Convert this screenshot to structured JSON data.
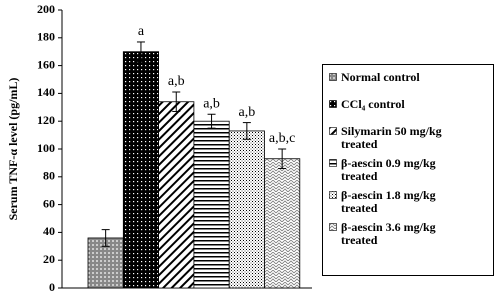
{
  "chart_data": {
    "type": "bar",
    "y_label": "Serum TNF-α level (pg/mL)",
    "categories": [
      "Normal control",
      "CCl₄ control",
      "Silymarin 50 mg/kg treated",
      "β-aescin 0.9 mg/kg treated",
      "β-aescin 1.8 mg/kg treated",
      "β-aescin 3.6 mg/kg treated"
    ],
    "values": [
      36,
      170,
      134,
      120,
      113,
      93
    ],
    "errors": [
      6,
      7,
      7,
      5,
      6,
      7
    ],
    "annotations": [
      null,
      "a",
      "a,b",
      "a,b",
      "a,b",
      "a,b,c"
    ],
    "ylim": [
      0,
      200
    ],
    "yticks": [
      0,
      20,
      40,
      60,
      80,
      100,
      120,
      140,
      160,
      180,
      200
    ]
  }
}
